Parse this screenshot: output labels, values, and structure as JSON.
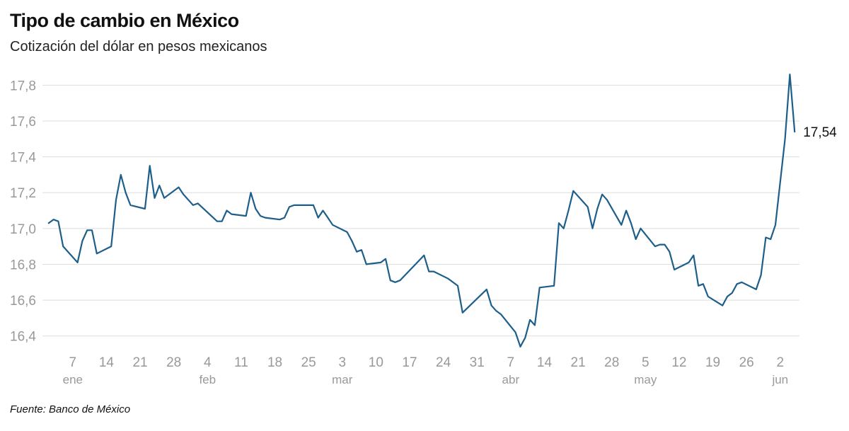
{
  "title": "Tipo de cambio en México",
  "subtitle": "Cotización del dólar en pesos mexicanos",
  "source": "Fuente: Banco de México",
  "chart_data": {
    "type": "line",
    "title": "Tipo de cambio en México",
    "subtitle": "Cotización del dólar en pesos mexicanos",
    "xlabel": "",
    "ylabel": "",
    "ylim": [
      16.3,
      17.9
    ],
    "xlim": [
      "2024-01-01",
      "2024-06-06"
    ],
    "yticks": [
      16.4,
      16.6,
      16.8,
      17.0,
      17.2,
      17.4,
      17.6,
      17.8
    ],
    "ytick_labels": [
      "16,4",
      "16,6",
      "16,8",
      "17,0",
      "17,2",
      "17,4",
      "17,6",
      "17,8"
    ],
    "xticks": [
      {
        "date": "2024-01-07",
        "label": "7",
        "month": "ene"
      },
      {
        "date": "2024-01-14",
        "label": "14"
      },
      {
        "date": "2024-01-21",
        "label": "21"
      },
      {
        "date": "2024-01-28",
        "label": "28"
      },
      {
        "date": "2024-02-04",
        "label": "4",
        "month": "feb"
      },
      {
        "date": "2024-02-11",
        "label": "11"
      },
      {
        "date": "2024-02-18",
        "label": "18"
      },
      {
        "date": "2024-02-25",
        "label": "25"
      },
      {
        "date": "2024-03-03",
        "label": "3",
        "month": "mar"
      },
      {
        "date": "2024-03-10",
        "label": "10"
      },
      {
        "date": "2024-03-17",
        "label": "17"
      },
      {
        "date": "2024-03-24",
        "label": "24"
      },
      {
        "date": "2024-03-31",
        "label": "31"
      },
      {
        "date": "2024-04-07",
        "label": "7",
        "month": "abr"
      },
      {
        "date": "2024-04-14",
        "label": "14"
      },
      {
        "date": "2024-04-21",
        "label": "21"
      },
      {
        "date": "2024-04-28",
        "label": "28"
      },
      {
        "date": "2024-05-05",
        "label": "5",
        "month": "may"
      },
      {
        "date": "2024-05-12",
        "label": "12"
      },
      {
        "date": "2024-05-19",
        "label": "19"
      },
      {
        "date": "2024-05-26",
        "label": "26"
      },
      {
        "date": "2024-06-02",
        "label": "2",
        "month": "jun"
      }
    ],
    "grid": true,
    "line_color": "#1d5f8a",
    "end_label": "17,54",
    "series": [
      {
        "name": "",
        "points": [
          [
            "2024-01-02",
            17.03
          ],
          [
            "2024-01-03",
            17.05
          ],
          [
            "2024-01-04",
            17.04
          ],
          [
            "2024-01-05",
            16.9
          ],
          [
            "2024-01-08",
            16.81
          ],
          [
            "2024-01-09",
            16.93
          ],
          [
            "2024-01-10",
            16.99
          ],
          [
            "2024-01-11",
            16.99
          ],
          [
            "2024-01-12",
            16.86
          ],
          [
            "2024-01-15",
            16.9
          ],
          [
            "2024-01-16",
            17.16
          ],
          [
            "2024-01-17",
            17.3
          ],
          [
            "2024-01-18",
            17.2
          ],
          [
            "2024-01-19",
            17.13
          ],
          [
            "2024-01-22",
            17.11
          ],
          [
            "2024-01-23",
            17.35
          ],
          [
            "2024-01-24",
            17.17
          ],
          [
            "2024-01-25",
            17.24
          ],
          [
            "2024-01-26",
            17.17
          ],
          [
            "2024-01-29",
            17.23
          ],
          [
            "2024-01-30",
            17.19
          ],
          [
            "2024-01-31",
            17.16
          ],
          [
            "2024-02-01",
            17.13
          ],
          [
            "2024-02-02",
            17.14
          ],
          [
            "2024-02-06",
            17.04
          ],
          [
            "2024-02-07",
            17.04
          ],
          [
            "2024-02-08",
            17.1
          ],
          [
            "2024-02-09",
            17.08
          ],
          [
            "2024-02-12",
            17.07
          ],
          [
            "2024-02-13",
            17.2
          ],
          [
            "2024-02-14",
            17.11
          ],
          [
            "2024-02-15",
            17.07
          ],
          [
            "2024-02-16",
            17.06
          ],
          [
            "2024-02-19",
            17.05
          ],
          [
            "2024-02-20",
            17.06
          ],
          [
            "2024-02-21",
            17.12
          ],
          [
            "2024-02-22",
            17.13
          ],
          [
            "2024-02-23",
            17.13
          ],
          [
            "2024-02-26",
            17.13
          ],
          [
            "2024-02-27",
            17.06
          ],
          [
            "2024-02-28",
            17.1
          ],
          [
            "2024-02-29",
            17.06
          ],
          [
            "2024-03-01",
            17.02
          ],
          [
            "2024-03-04",
            16.98
          ],
          [
            "2024-03-05",
            16.93
          ],
          [
            "2024-03-06",
            16.87
          ],
          [
            "2024-03-07",
            16.88
          ],
          [
            "2024-03-08",
            16.8
          ],
          [
            "2024-03-11",
            16.81
          ],
          [
            "2024-03-12",
            16.83
          ],
          [
            "2024-03-13",
            16.71
          ],
          [
            "2024-03-14",
            16.7
          ],
          [
            "2024-03-15",
            16.71
          ],
          [
            "2024-03-20",
            16.85
          ],
          [
            "2024-03-21",
            16.76
          ],
          [
            "2024-03-22",
            16.76
          ],
          [
            "2024-03-25",
            16.72
          ],
          [
            "2024-03-26",
            16.7
          ],
          [
            "2024-03-27",
            16.68
          ],
          [
            "2024-03-28",
            16.53
          ],
          [
            "2024-04-02",
            16.66
          ],
          [
            "2024-04-03",
            16.57
          ],
          [
            "2024-04-04",
            16.54
          ],
          [
            "2024-04-05",
            16.52
          ],
          [
            "2024-04-08",
            16.42
          ],
          [
            "2024-04-09",
            16.34
          ],
          [
            "2024-04-10",
            16.39
          ],
          [
            "2024-04-11",
            16.49
          ],
          [
            "2024-04-12",
            16.46
          ],
          [
            "2024-04-13",
            16.67
          ],
          [
            "2024-04-16",
            16.68
          ],
          [
            "2024-04-17",
            17.03
          ],
          [
            "2024-04-18",
            17.0
          ],
          [
            "2024-04-19",
            17.1
          ],
          [
            "2024-04-20",
            17.21
          ],
          [
            "2024-04-23",
            17.12
          ],
          [
            "2024-04-24",
            17.0
          ],
          [
            "2024-04-25",
            17.11
          ],
          [
            "2024-04-26",
            17.19
          ],
          [
            "2024-04-27",
            17.16
          ],
          [
            "2024-04-30",
            17.02
          ],
          [
            "2024-05-01",
            17.1
          ],
          [
            "2024-05-02",
            17.03
          ],
          [
            "2024-05-03",
            16.94
          ],
          [
            "2024-05-04",
            17.0
          ],
          [
            "2024-05-07",
            16.9
          ],
          [
            "2024-05-08",
            16.91
          ],
          [
            "2024-05-09",
            16.91
          ],
          [
            "2024-05-10",
            16.87
          ],
          [
            "2024-05-11",
            16.77
          ],
          [
            "2024-05-14",
            16.81
          ],
          [
            "2024-05-15",
            16.85
          ],
          [
            "2024-05-16",
            16.68
          ],
          [
            "2024-05-17",
            16.69
          ],
          [
            "2024-05-18",
            16.62
          ],
          [
            "2024-05-21",
            16.57
          ],
          [
            "2024-05-22",
            16.62
          ],
          [
            "2024-05-23",
            16.64
          ],
          [
            "2024-05-24",
            16.69
          ],
          [
            "2024-05-25",
            16.7
          ],
          [
            "2024-05-28",
            16.66
          ],
          [
            "2024-05-29",
            16.74
          ],
          [
            "2024-05-30",
            16.95
          ],
          [
            "2024-05-31",
            16.94
          ],
          [
            "2024-06-01",
            17.02
          ],
          [
            "2024-06-03",
            17.5
          ],
          [
            "2024-06-04",
            17.86
          ],
          [
            "2024-06-05",
            17.54
          ]
        ]
      }
    ]
  }
}
